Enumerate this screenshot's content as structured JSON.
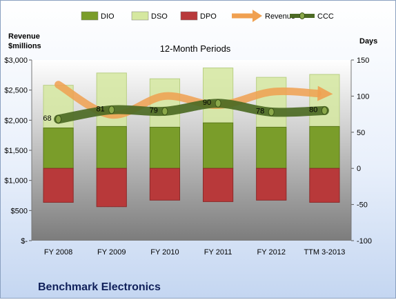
{
  "chart_data": {
    "type": "bar",
    "subtitle": "12-Month Periods",
    "company": "Benchmark Electronics",
    "left_axis_title": [
      "Revenue",
      "$millions"
    ],
    "right_axis_title": "Days",
    "categories": [
      "FY 2008",
      "FY 2009",
      "FY 2010",
      "FY 2011",
      "FY 2012",
      "TTM 3-2013"
    ],
    "left_axis": {
      "min": 0,
      "max": 3000,
      "step": 500,
      "tick_labels": [
        "$-",
        "$500",
        "$1,000",
        "$1,500",
        "$2,000",
        "$2,500",
        "$3,000"
      ]
    },
    "right_axis": {
      "min": -100,
      "max": 150,
      "step": 50,
      "tick_labels": [
        "-100",
        "-50",
        "0",
        "50",
        "100",
        "150"
      ]
    },
    "legend": {
      "position": "top",
      "items": [
        {
          "label": "DIO",
          "kind": "bar"
        },
        {
          "label": "DSO",
          "kind": "bar"
        },
        {
          "label": "DPO",
          "kind": "bar"
        },
        {
          "label": "Revenue",
          "kind": "arrow"
        },
        {
          "label": "CCC",
          "kind": "line"
        }
      ]
    },
    "series": [
      {
        "name": "DIO",
        "axis": "right",
        "values": [
          56,
          58,
          57,
          63,
          57,
          58
        ]
      },
      {
        "name": "DSO",
        "axis": "right",
        "values": [
          59,
          74,
          67,
          76,
          69,
          72
        ]
      },
      {
        "name": "DPO",
        "axis": "right",
        "values": [
          -47,
          -53,
          -44,
          -46,
          -44,
          -47
        ]
      },
      {
        "name": "Revenue",
        "axis": "left",
        "values": [
          2590,
          2090,
          2400,
          2250,
          2470,
          2440
        ]
      },
      {
        "name": "CCC",
        "axis": "right",
        "values": [
          68,
          81,
          79,
          90,
          78,
          80
        ],
        "data_labels": [
          "68",
          "81",
          "79",
          "90",
          "78",
          "80"
        ]
      }
    ],
    "colors": {
      "DIO": "#7a9d2a",
      "DSO": "#d5e8a0",
      "DPO": "#b8393a",
      "Revenue": "#f0a050",
      "CCC": "#4c6a24"
    },
    "grid": false
  }
}
